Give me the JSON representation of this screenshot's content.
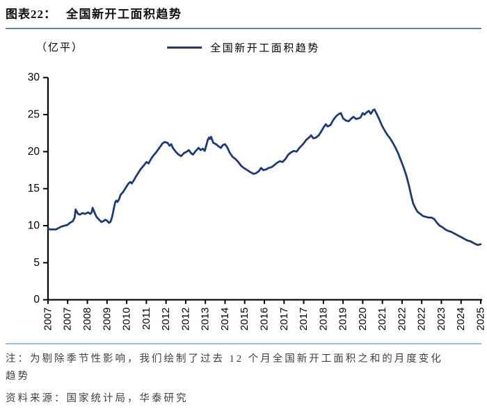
{
  "header": {
    "chart_label": "图表22：",
    "title": "全国新开工面积趋势"
  },
  "unit_label": "（亿平）",
  "legend": {
    "label": "全国新开工面积趋势"
  },
  "notes": {
    "note_lines": [
      "注：为剔除季节性影响，我们绘制了过去 12 个月全国新开工面积之和的月度变化",
      "趋势"
    ],
    "source": "资料来源：国家统计局，华泰研究"
  },
  "colors": {
    "line": "#1e3a70",
    "title_rule": "#6884a8",
    "note_rule": "#a3b8d0",
    "axis": "#000000",
    "note_text": "#3f3f3f"
  },
  "chart_data": {
    "type": "line",
    "title": "全国新开工面积趋势",
    "xlabel": "",
    "ylabel": "（亿平）",
    "grid": false,
    "legend_position": "top-center",
    "ylim": [
      0,
      30
    ],
    "y_ticks": [
      0,
      5,
      10,
      15,
      20,
      25,
      30
    ],
    "xlim": [
      2007.0,
      2025.333
    ],
    "x_tick_positions": [
      2007.0,
      2007.833,
      2008.667,
      2009.5,
      2010.333,
      2011.167,
      2012.0,
      2012.833,
      2013.667,
      2014.5,
      2015.333,
      2016.167,
      2017.0,
      2017.833,
      2018.667,
      2019.5,
      2020.333,
      2021.167,
      2022.0,
      2022.833,
      2023.667,
      2024.5,
      2025.333
    ],
    "x_tick_labels": [
      "2007",
      "2007",
      "2008",
      "2009",
      "2010",
      "2011",
      "2012",
      "2012",
      "2013",
      "2014",
      "2015",
      "2016",
      "2017",
      "2017",
      "2018",
      "2019",
      "2020",
      "2021",
      "2022",
      "2022",
      "2023",
      "2024",
      "2025"
    ],
    "series": [
      {
        "name": "全国新开工面积趋势",
        "color": "#1e3a70",
        "points": [
          [
            2007.0,
            9.6
          ],
          [
            2007.1,
            9.5
          ],
          [
            2007.22,
            9.5
          ],
          [
            2007.34,
            9.5
          ],
          [
            2007.46,
            9.7
          ],
          [
            2007.58,
            9.9
          ],
          [
            2007.7,
            10.0
          ],
          [
            2007.82,
            10.1
          ],
          [
            2007.93,
            10.4
          ],
          [
            2008.05,
            10.6
          ],
          [
            2008.13,
            11.1
          ],
          [
            2008.17,
            12.2
          ],
          [
            2008.22,
            11.9
          ],
          [
            2008.27,
            11.6
          ],
          [
            2008.35,
            11.5
          ],
          [
            2008.46,
            11.7
          ],
          [
            2008.58,
            11.6
          ],
          [
            2008.7,
            11.8
          ],
          [
            2008.79,
            11.6
          ],
          [
            2008.85,
            11.8
          ],
          [
            2008.89,
            12.4
          ],
          [
            2008.93,
            12.1
          ],
          [
            2008.97,
            11.8
          ],
          [
            2009.05,
            11.2
          ],
          [
            2009.14,
            10.9
          ],
          [
            2009.26,
            10.5
          ],
          [
            2009.34,
            10.6
          ],
          [
            2009.42,
            10.8
          ],
          [
            2009.5,
            10.7
          ],
          [
            2009.58,
            10.4
          ],
          [
            2009.64,
            10.5
          ],
          [
            2009.7,
            11.0
          ],
          [
            2009.75,
            11.7
          ],
          [
            2009.8,
            12.5
          ],
          [
            2009.85,
            13.2
          ],
          [
            2009.9,
            13.4
          ],
          [
            2009.94,
            13.2
          ],
          [
            2010.0,
            13.5
          ],
          [
            2010.08,
            14.2
          ],
          [
            2010.17,
            14.5
          ],
          [
            2010.29,
            15.1
          ],
          [
            2010.41,
            15.7
          ],
          [
            2010.49,
            15.9
          ],
          [
            2010.55,
            15.7
          ],
          [
            2010.63,
            16.1
          ],
          [
            2010.7,
            16.5
          ],
          [
            2010.82,
            17.1
          ],
          [
            2010.94,
            17.7
          ],
          [
            2011.05,
            18.1
          ],
          [
            2011.17,
            18.6
          ],
          [
            2011.26,
            18.4
          ],
          [
            2011.38,
            19.1
          ],
          [
            2011.47,
            19.5
          ],
          [
            2011.58,
            19.9
          ],
          [
            2011.67,
            20.3
          ],
          [
            2011.76,
            20.7
          ],
          [
            2011.85,
            21.1
          ],
          [
            2011.94,
            21.3
          ],
          [
            2012.06,
            21.2
          ],
          [
            2012.15,
            20.8
          ],
          [
            2012.22,
            21.0
          ],
          [
            2012.29,
            20.5
          ],
          [
            2012.41,
            20.0
          ],
          [
            2012.53,
            19.6
          ],
          [
            2012.64,
            19.4
          ],
          [
            2012.76,
            19.8
          ],
          [
            2012.88,
            20.0
          ],
          [
            2012.97,
            20.2
          ],
          [
            2013.06,
            19.8
          ],
          [
            2013.14,
            19.6
          ],
          [
            2013.26,
            20.1
          ],
          [
            2013.38,
            20.5
          ],
          [
            2013.47,
            20.2
          ],
          [
            2013.56,
            20.4
          ],
          [
            2013.64,
            20.1
          ],
          [
            2013.72,
            21.0
          ],
          [
            2013.77,
            21.6
          ],
          [
            2013.82,
            21.9
          ],
          [
            2013.86,
            21.7
          ],
          [
            2013.91,
            22.0
          ],
          [
            2014.0,
            21.2
          ],
          [
            2014.12,
            21.0
          ],
          [
            2014.23,
            20.7
          ],
          [
            2014.32,
            20.5
          ],
          [
            2014.41,
            20.9
          ],
          [
            2014.5,
            21.0
          ],
          [
            2014.59,
            20.6
          ],
          [
            2014.71,
            19.8
          ],
          [
            2014.82,
            19.3
          ],
          [
            2014.94,
            19.0
          ],
          [
            2015.06,
            18.6
          ],
          [
            2015.18,
            18.1
          ],
          [
            2015.29,
            17.8
          ],
          [
            2015.44,
            17.5
          ],
          [
            2015.59,
            17.2
          ],
          [
            2015.71,
            17.0
          ],
          [
            2015.82,
            17.1
          ],
          [
            2015.94,
            17.4
          ],
          [
            2016.03,
            17.8
          ],
          [
            2016.12,
            17.5
          ],
          [
            2016.24,
            17.6
          ],
          [
            2016.35,
            17.8
          ],
          [
            2016.47,
            17.9
          ],
          [
            2016.59,
            18.2
          ],
          [
            2016.71,
            18.5
          ],
          [
            2016.82,
            18.7
          ],
          [
            2016.94,
            18.6
          ],
          [
            2017.06,
            19.0
          ],
          [
            2017.18,
            19.6
          ],
          [
            2017.3,
            19.9
          ],
          [
            2017.41,
            20.1
          ],
          [
            2017.53,
            20.0
          ],
          [
            2017.65,
            20.5
          ],
          [
            2017.77,
            20.9
          ],
          [
            2017.85,
            21.2
          ],
          [
            2017.94,
            21.6
          ],
          [
            2018.06,
            21.9
          ],
          [
            2018.15,
            22.2
          ],
          [
            2018.24,
            21.8
          ],
          [
            2018.35,
            21.9
          ],
          [
            2018.47,
            22.2
          ],
          [
            2018.59,
            22.8
          ],
          [
            2018.68,
            23.3
          ],
          [
            2018.77,
            23.7
          ],
          [
            2018.85,
            23.4
          ],
          [
            2018.97,
            23.6
          ],
          [
            2019.09,
            24.3
          ],
          [
            2019.21,
            24.8
          ],
          [
            2019.33,
            25.1
          ],
          [
            2019.41,
            25.2
          ],
          [
            2019.5,
            24.5
          ],
          [
            2019.62,
            24.2
          ],
          [
            2019.74,
            24.1
          ],
          [
            2019.86,
            24.5
          ],
          [
            2019.94,
            24.7
          ],
          [
            2020.06,
            24.4
          ],
          [
            2020.15,
            24.5
          ],
          [
            2020.24,
            24.6
          ],
          [
            2020.33,
            25.2
          ],
          [
            2020.41,
            25.0
          ],
          [
            2020.5,
            25.3
          ],
          [
            2020.59,
            25.5
          ],
          [
            2020.68,
            25.1
          ],
          [
            2020.77,
            25.6
          ],
          [
            2020.83,
            25.7
          ],
          [
            2020.91,
            25.2
          ],
          [
            2021.03,
            24.4
          ],
          [
            2021.15,
            23.5
          ],
          [
            2021.27,
            22.8
          ],
          [
            2021.39,
            22.2
          ],
          [
            2021.47,
            21.9
          ],
          [
            2021.59,
            21.3
          ],
          [
            2021.71,
            20.6
          ],
          [
            2021.83,
            19.8
          ],
          [
            2021.94,
            18.9
          ],
          [
            2022.06,
            17.9
          ],
          [
            2022.18,
            16.8
          ],
          [
            2022.3,
            15.3
          ],
          [
            2022.39,
            14.0
          ],
          [
            2022.47,
            13.0
          ],
          [
            2022.56,
            12.4
          ],
          [
            2022.65,
            11.9
          ],
          [
            2022.77,
            11.6
          ],
          [
            2022.89,
            11.3
          ],
          [
            2023.0,
            11.2
          ],
          [
            2023.12,
            11.1
          ],
          [
            2023.24,
            11.1
          ],
          [
            2023.36,
            10.9
          ],
          [
            2023.48,
            10.4
          ],
          [
            2023.59,
            10.0
          ],
          [
            2023.71,
            9.8
          ],
          [
            2023.83,
            9.5
          ],
          [
            2023.95,
            9.3
          ],
          [
            2024.07,
            9.2
          ],
          [
            2024.18,
            9.0
          ],
          [
            2024.3,
            8.8
          ],
          [
            2024.42,
            8.6
          ],
          [
            2024.54,
            8.4
          ],
          [
            2024.65,
            8.2
          ],
          [
            2024.77,
            8.0
          ],
          [
            2024.89,
            7.9
          ],
          [
            2025.01,
            7.7
          ],
          [
            2025.13,
            7.5
          ],
          [
            2025.21,
            7.4
          ],
          [
            2025.33,
            7.5
          ]
        ]
      }
    ]
  }
}
